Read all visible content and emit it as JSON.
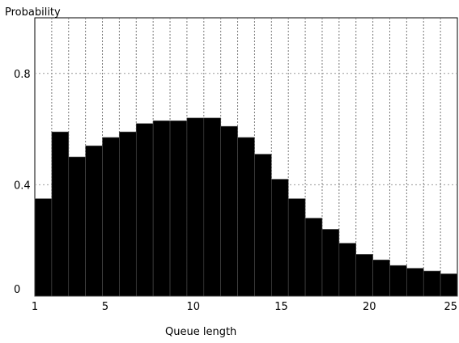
{
  "chart_data": {
    "type": "bar",
    "ylabel": "Probability",
    "xlabel": "Queue length",
    "x": [
      1,
      2,
      3,
      4,
      5,
      6,
      7,
      8,
      9,
      10,
      11,
      12,
      13,
      14,
      15,
      16,
      17,
      18,
      19,
      20,
      21,
      22,
      23,
      24,
      25
    ],
    "values": [
      0.35,
      0.59,
      0.5,
      0.54,
      0.57,
      0.59,
      0.62,
      0.63,
      0.63,
      0.64,
      0.64,
      0.61,
      0.57,
      0.51,
      0.42,
      0.35,
      0.28,
      0.24,
      0.19,
      0.15,
      0.13,
      0.11,
      0.1,
      0.09,
      0.08
    ],
    "xlim": [
      1,
      25
    ],
    "ylim": [
      0,
      1.0
    ],
    "xticks": [
      "1",
      "5",
      "10",
      "15",
      "20",
      "25"
    ],
    "yticks": [
      "0",
      "0.4",
      "0.8"
    ],
    "grid": "vertical dotted",
    "bar_color": "#000000"
  }
}
